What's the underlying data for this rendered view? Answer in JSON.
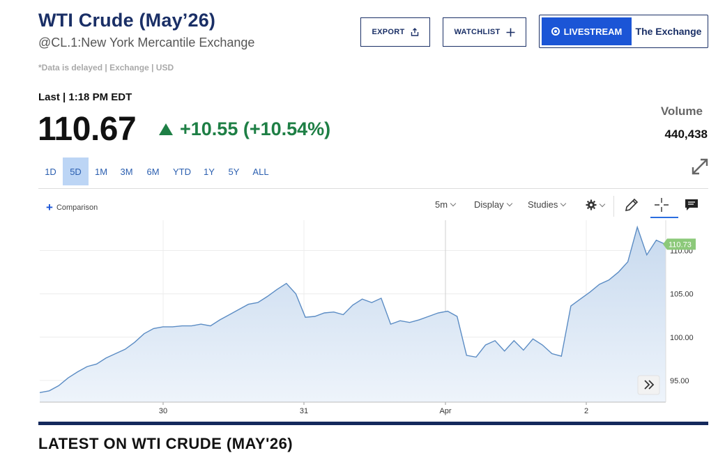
{
  "header": {
    "title": "WTI Crude (May’26)",
    "subtitle": "@CL.1:New York Mercantile Exchange",
    "delayed_note": "*Data is delayed | Exchange | USD"
  },
  "actions": {
    "export_label": "EXPORT",
    "watchlist_label": "WATCHLIST",
    "livestream_label": "LIVESTREAM",
    "exchange_label": "The Exchange"
  },
  "quote": {
    "last_label": "Last | 1:18 PM EDT",
    "price": "110.67",
    "change": "+10.55 (+10.54%)",
    "volume_label": "Volume",
    "volume_value": "440,438"
  },
  "ranges": [
    {
      "label": "1D",
      "active": false
    },
    {
      "label": "5D",
      "active": true
    },
    {
      "label": "1M",
      "active": false
    },
    {
      "label": "3M",
      "active": false
    },
    {
      "label": "6M",
      "active": false
    },
    {
      "label": "YTD",
      "active": false
    },
    {
      "label": "1Y",
      "active": false
    },
    {
      "label": "5Y",
      "active": false
    },
    {
      "label": "ALL",
      "active": false
    }
  ],
  "toolbar": {
    "comparison_label": "Comparison",
    "interval_label": "5m",
    "display_label": "Display",
    "studies_label": "Studies"
  },
  "colors": {
    "line": "#5b8cc4",
    "fill_top": "#c7d9ee",
    "last_price_badge": "#8cc97a",
    "accent": "#1b55d6",
    "positive": "#1e7f45"
  },
  "chart_data": {
    "type": "area",
    "x_tick_labels": [
      "30",
      "31",
      "Apr",
      "2"
    ],
    "y_tick_labels": [
      "95.00",
      "100.00",
      "105.00",
      "110.00"
    ],
    "ylim": [
      92.5,
      113.5
    ],
    "grid": true,
    "last_price_label": "110.73",
    "series": [
      {
        "values": [
          93.6,
          93.8,
          94.4,
          95.3,
          96.0,
          96.6,
          96.9,
          97.6,
          98.1,
          98.6,
          99.4,
          100.4,
          101.0,
          101.2,
          101.2,
          101.3,
          101.3,
          101.5,
          101.3,
          102.0,
          102.6,
          103.2,
          103.8,
          104.0,
          104.7,
          105.5,
          106.2,
          105.0,
          102.3,
          102.4,
          102.8,
          102.9,
          102.6,
          103.7,
          104.4,
          104.0,
          104.5,
          101.5,
          101.9,
          101.7,
          102.0,
          102.4,
          102.8,
          103.0,
          102.4,
          97.9,
          97.7,
          99.1,
          99.6,
          98.4,
          99.6,
          98.5,
          99.8,
          99.1,
          98.1,
          97.8,
          103.6,
          104.4,
          105.2,
          106.1,
          106.6,
          107.5,
          108.7,
          112.7,
          109.5,
          111.2,
          110.7
        ]
      }
    ]
  },
  "footer": {
    "heading": "LATEST ON WTI CRUDE (MAY'26)"
  }
}
